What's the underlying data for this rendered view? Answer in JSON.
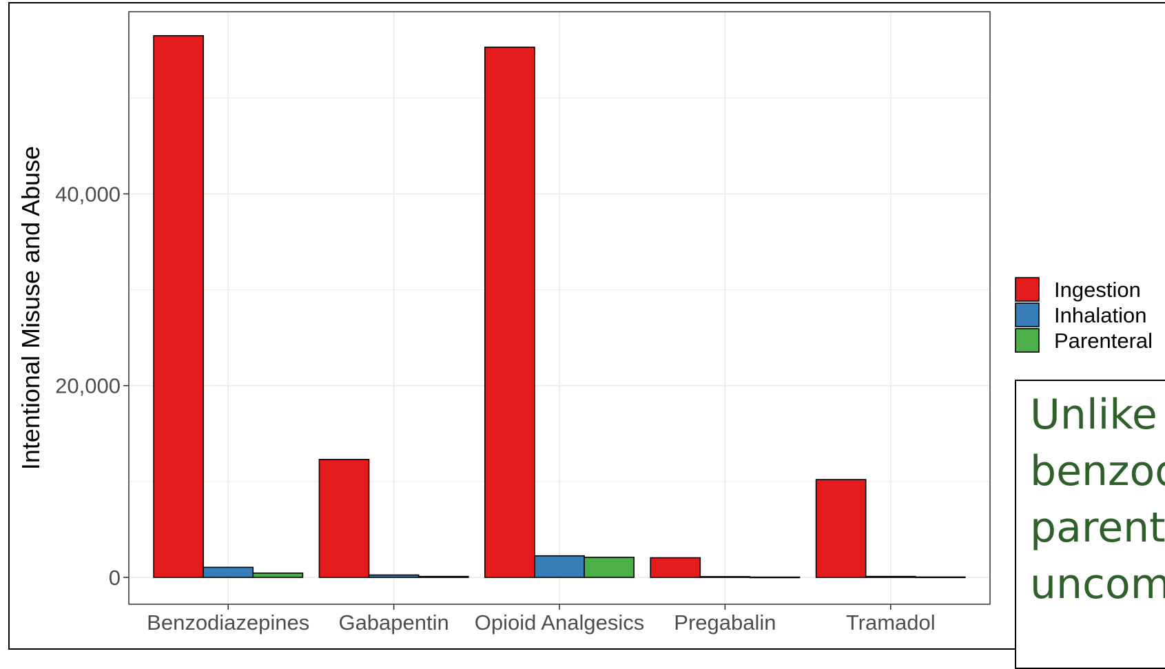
{
  "chart_data": {
    "type": "bar",
    "categories": [
      "Benzodiazepines",
      "Gabapentin",
      "Opioid Analgesics",
      "Pregabalin",
      "Tramadol"
    ],
    "series": [
      {
        "name": "Ingestion",
        "color": "#e41a1c",
        "values": [
          56500,
          12300,
          55300,
          2050,
          10200
        ]
      },
      {
        "name": "Inhalation",
        "color": "#377eb8",
        "values": [
          1050,
          250,
          2250,
          80,
          100
        ]
      },
      {
        "name": "Parenteral",
        "color": "#4daf4a",
        "values": [
          450,
          100,
          2100,
          30,
          40
        ]
      }
    ],
    "ylabel": "Intentional Misuse and Abuse",
    "xlabel": "",
    "ylim": [
      -2800,
      59000
    ],
    "yticks": [
      0,
      20000,
      40000
    ],
    "ytick_labels": [
      "0",
      "20,000",
      "40,000"
    ],
    "grid": true,
    "legend_position": "right"
  },
  "callout": {
    "text": "Unlike\nbenzod\nparent\nuncom"
  }
}
